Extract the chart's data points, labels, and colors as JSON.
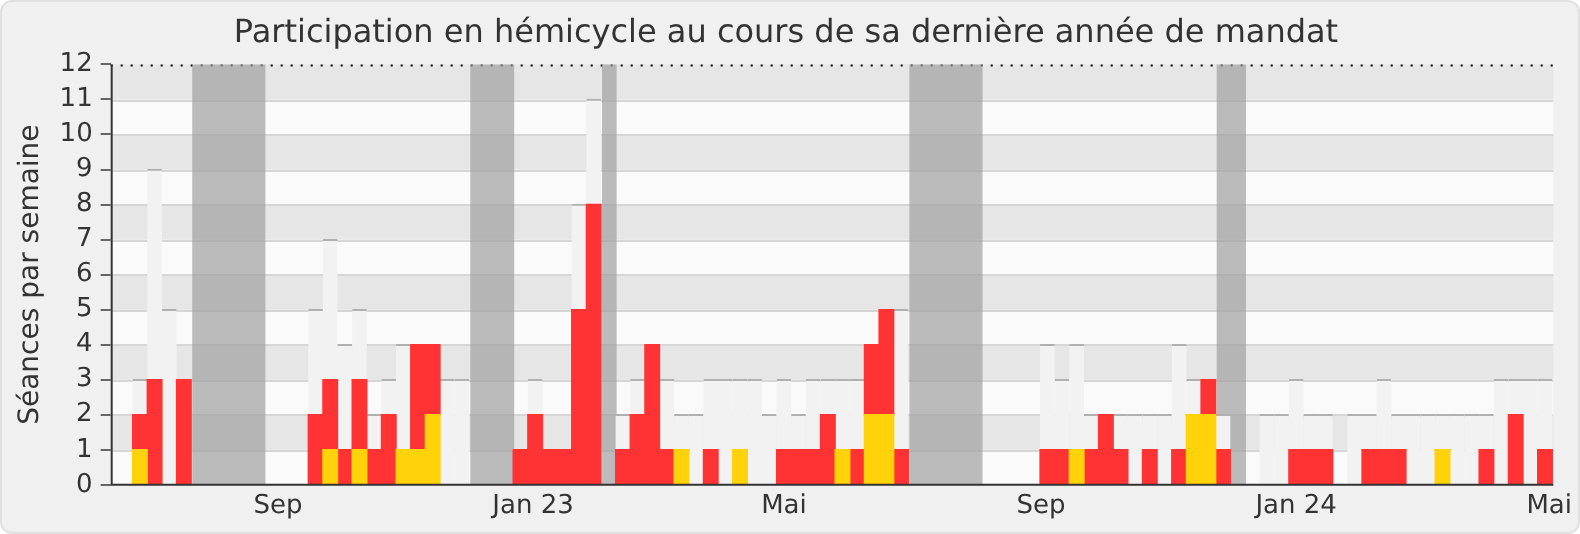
{
  "chart_data": {
    "type": "bar",
    "stacked": true,
    "title": "Participation en hémicycle au cours de sa dernière année de mandat",
    "ylabel": "Séances par semaine",
    "x": [
      "2022-06-27",
      "2022-07-04",
      "2022-07-11",
      "2022-07-18",
      "2022-07-25",
      "2022-08-01",
      "2022-08-08",
      "2022-08-15",
      "2022-08-22",
      "2022-08-29",
      "2022-09-05",
      "2022-09-12",
      "2022-09-19",
      "2022-09-26",
      "2022-10-03",
      "2022-10-10",
      "2022-10-17",
      "2022-10-24",
      "2022-10-31",
      "2022-11-07",
      "2022-11-14",
      "2022-11-21",
      "2022-11-28",
      "2022-12-05",
      "2022-12-12",
      "2022-12-19",
      "2022-12-26",
      "2023-01-02",
      "2023-01-09",
      "2023-01-16",
      "2023-01-23",
      "2023-01-30",
      "2023-02-06",
      "2023-02-13",
      "2023-02-20",
      "2023-02-27",
      "2023-03-06",
      "2023-03-13",
      "2023-03-20",
      "2023-03-27",
      "2023-04-03",
      "2023-04-10",
      "2023-04-17",
      "2023-04-24",
      "2023-05-01",
      "2023-05-08",
      "2023-05-15",
      "2023-05-22",
      "2023-05-29",
      "2023-06-05",
      "2023-06-12",
      "2023-06-19",
      "2023-06-26",
      "2023-07-03",
      "2023-07-10",
      "2023-07-17",
      "2023-07-24",
      "2023-07-31",
      "2023-08-07",
      "2023-08-14",
      "2023-08-21",
      "2023-08-28",
      "2023-09-04",
      "2023-09-11",
      "2023-09-18",
      "2023-09-25",
      "2023-10-02",
      "2023-10-09",
      "2023-10-16",
      "2023-10-23",
      "2023-10-30",
      "2023-11-06",
      "2023-11-13",
      "2023-11-20",
      "2023-11-27",
      "2023-12-04",
      "2023-12-11",
      "2023-12-18",
      "2023-12-25",
      "2024-01-01",
      "2024-01-08",
      "2024-01-15",
      "2024-01-22",
      "2024-01-29",
      "2024-02-05",
      "2024-02-12",
      "2024-02-19",
      "2024-02-26",
      "2024-03-04",
      "2024-03-11",
      "2024-03-18",
      "2024-03-25",
      "2024-04-01",
      "2024-04-08",
      "2024-04-15",
      "2024-04-22",
      "2024-04-29"
    ],
    "series": [
      {
        "color": "#ffd20a",
        "values": [
          1,
          0,
          0,
          0,
          0,
          0,
          0,
          0,
          0,
          0,
          0,
          0,
          0,
          1,
          0,
          1,
          0,
          0,
          1,
          1,
          2,
          0,
          0,
          0,
          0,
          0,
          0,
          0,
          0,
          0,
          0,
          0,
          0,
          0,
          0,
          0,
          0,
          1,
          0,
          0,
          0,
          1,
          0,
          0,
          0,
          0,
          0,
          0,
          1,
          0,
          2,
          2,
          0,
          0,
          0,
          0,
          0,
          0,
          0,
          0,
          0,
          0,
          0,
          0,
          1,
          0,
          0,
          0,
          0,
          0,
          0,
          0,
          2,
          2,
          0,
          0,
          0,
          0,
          0,
          0,
          0,
          0,
          0,
          0,
          0,
          0,
          0,
          0,
          0,
          1,
          0,
          0,
          0,
          0,
          0,
          0,
          0
        ]
      },
      {
        "color": "#ff3333",
        "values": [
          1,
          3,
          0,
          3,
          0,
          0,
          0,
          0,
          0,
          0,
          0,
          0,
          2,
          2,
          1,
          2,
          1,
          2,
          0,
          3,
          2,
          0,
          0,
          0,
          0,
          0,
          1,
          2,
          1,
          1,
          5,
          8,
          0,
          1,
          2,
          4,
          1,
          0,
          0,
          1,
          0,
          0,
          0,
          0,
          1,
          1,
          1,
          2,
          0,
          1,
          2,
          3,
          1,
          0,
          0,
          0,
          0,
          0,
          0,
          0,
          0,
          0,
          1,
          1,
          0,
          1,
          2,
          1,
          0,
          1,
          0,
          1,
          0,
          1,
          1,
          0,
          0,
          0,
          0,
          1,
          1,
          1,
          0,
          0,
          1,
          1,
          1,
          0,
          0,
          0,
          0,
          0,
          1,
          0,
          2,
          0,
          1
        ]
      },
      {
        "color": "#f2f2f2",
        "values": [
          1,
          6,
          5,
          0,
          0,
          0,
          0,
          0,
          0,
          0,
          0,
          0,
          3,
          4,
          3,
          2,
          1,
          1,
          3,
          0,
          0,
          3,
          3,
          0,
          0,
          0,
          0,
          1,
          0,
          0,
          3,
          3,
          0,
          1,
          1,
          0,
          2,
          1,
          2,
          2,
          3,
          2,
          3,
          2,
          2,
          1,
          2,
          1,
          2,
          2,
          0,
          0,
          4,
          0,
          0,
          0,
          0,
          0,
          0,
          0,
          0,
          0,
          3,
          2,
          3,
          1,
          0,
          1,
          2,
          1,
          2,
          3,
          1,
          0,
          1,
          0,
          0,
          2,
          2,
          2,
          1,
          1,
          0,
          2,
          1,
          2,
          1,
          2,
          2,
          1,
          2,
          2,
          1,
          3,
          1,
          3,
          2
        ]
      }
    ],
    "xlim": [
      "2022-06-13",
      "2024-05-03"
    ],
    "xticks": [
      {
        "value": "2022-09-01",
        "label": "Sep"
      },
      {
        "value": "2023-01-01",
        "label": "Jan 23"
      },
      {
        "value": "2023-05-01",
        "label": "Mai"
      },
      {
        "value": "2023-09-01",
        "label": "Sep"
      },
      {
        "value": "2024-01-01",
        "label": "Jan 24"
      },
      {
        "value": "2024-05-01",
        "label": "Mai"
      }
    ],
    "ylim": [
      0,
      12
    ],
    "yticks": [
      0,
      1,
      2,
      3,
      4,
      5,
      6,
      7,
      8,
      9,
      10,
      11,
      12
    ],
    "bands": [
      {
        "axis": "x",
        "from": "2022-07-22",
        "to": "2022-08-26",
        "color": "#a0a0a0"
      },
      {
        "axis": "x",
        "from": "2022-12-02",
        "to": "2022-12-23",
        "color": "#a0a0a0"
      },
      {
        "axis": "x",
        "from": "2023-02-03",
        "to": "2023-02-10",
        "color": "#a0a0a0"
      },
      {
        "axis": "x",
        "from": "2023-06-30",
        "to": "2023-08-04",
        "color": "#a0a0a0"
      },
      {
        "axis": "x",
        "from": "2023-11-24",
        "to": "2023-12-08",
        "color": "#a0a0a0"
      }
    ],
    "grid": "y",
    "legend": false
  }
}
